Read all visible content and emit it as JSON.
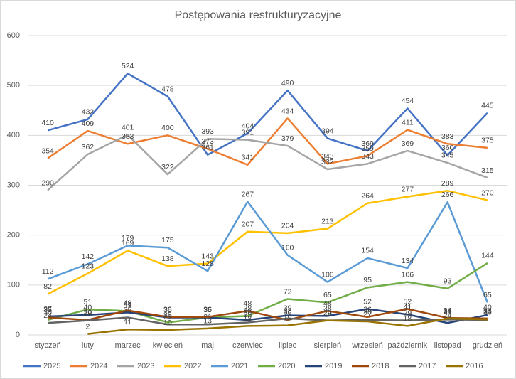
{
  "chart_data": {
    "type": "line",
    "title": "Postępowania restrukturyzacyjne",
    "categories": [
      "styczeń",
      "luty",
      "marzec",
      "kwiecień",
      "maj",
      "czerwiec",
      "lipiec",
      "sierpień",
      "wrzesień",
      "październik",
      "listopad",
      "grudzień"
    ],
    "series": [
      {
        "name": "2025",
        "color": "#4472c4",
        "values": [
          410,
          432,
          524,
          478,
          361,
          404,
          490,
          394,
          369,
          454,
          360,
          445
        ]
      },
      {
        "name": "2024",
        "color": "#ed7d31",
        "values": [
          354,
          409,
          383,
          400,
          373,
          341,
          434,
          343,
          359,
          411,
          383,
          375
        ]
      },
      {
        "name": "2023",
        "color": "#a5a5a5",
        "values": [
          290,
          362,
          401,
          322,
          393,
          391,
          379,
          332,
          343,
          369,
          345,
          315
        ]
      },
      {
        "name": "2022",
        "color": "#ffc000",
        "values": [
          82,
          123,
          169,
          138,
          143,
          207,
          204,
          213,
          264,
          277,
          289,
          270
        ]
      },
      {
        "name": "2021",
        "color": "#5b9bd5",
        "values": [
          112,
          142,
          179,
          175,
          128,
          267,
          160,
          106,
          154,
          134,
          266,
          65
        ]
      },
      {
        "name": "2020",
        "color": "#70ad47",
        "values": [
          30,
          51,
          48,
          25,
          35,
          38,
          72,
          65,
          95,
          106,
          93,
          144
        ]
      },
      {
        "name": "2019",
        "color": "#264478",
        "values": [
          37,
          40,
          45,
          35,
          35,
          30,
          39,
          38,
          52,
          41,
          24,
          40
        ]
      },
      {
        "name": "2018",
        "color": "#9e480e",
        "values": [
          35,
          30,
          49,
          36,
          36,
          48,
          30,
          48,
          36,
          52,
          34,
          33
        ]
      },
      {
        "name": "2017",
        "color": "#636363",
        "values": [
          24,
          29,
          35,
          21,
          21,
          25,
          33,
          29,
          30,
          29,
          31,
          30
        ]
      },
      {
        "name": "2016",
        "color": "#997300",
        "values": [
          null,
          2,
          11,
          10,
          13,
          18,
          19,
          29,
          27,
          18,
          33,
          31
        ]
      }
    ],
    "ylim": [
      0,
      600
    ],
    "yticks": [
      0,
      100,
      200,
      300,
      400,
      500,
      600
    ],
    "grid": true,
    "legend": "bottom",
    "data_labels": true
  }
}
